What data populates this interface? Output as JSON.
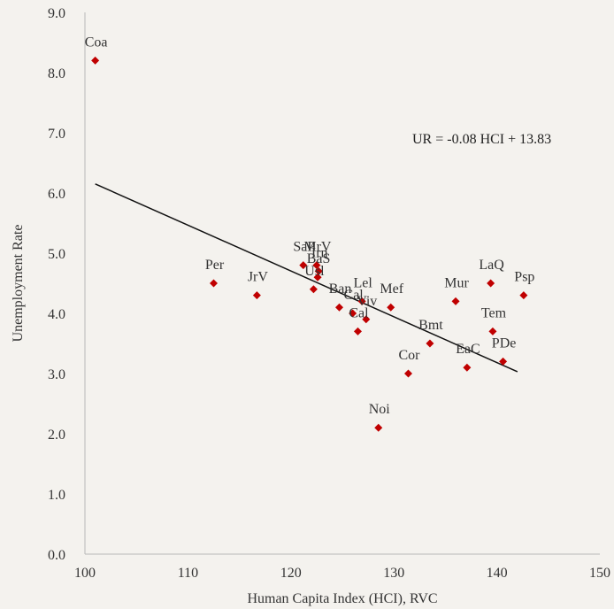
{
  "chart_data": {
    "type": "scatter",
    "title": "",
    "xlabel": "Human Capita Index (HCI), RVC",
    "ylabel": "Unemployment Rate",
    "xlim": [
      100,
      150
    ],
    "ylim": [
      0,
      9
    ],
    "x_ticks": [
      "100",
      "110",
      "120",
      "130",
      "140",
      "150"
    ],
    "y_ticks": [
      "0.0",
      "1.0",
      "2.0",
      "3.0",
      "4.0",
      "5.0",
      "6.0",
      "7.0",
      "8.0",
      "9.0"
    ],
    "grid": false,
    "legend": "none",
    "marker_color": "#c00000",
    "series": [
      {
        "points": [
          {
            "label": "Coa",
            "x": 101.0,
            "y": 8.2
          },
          {
            "label": "Per",
            "x": 112.5,
            "y": 4.5
          },
          {
            "label": "JrV",
            "x": 116.7,
            "y": 4.3
          },
          {
            "label": "SaP",
            "x": 121.2,
            "y": 4.8
          },
          {
            "label": "MrV",
            "x": 122.5,
            "y": 4.8
          },
          {
            "label": "Irn",
            "x": 122.7,
            "y": 4.7
          },
          {
            "label": "BaS",
            "x": 122.6,
            "y": 4.6
          },
          {
            "label": "Usl",
            "x": 122.2,
            "y": 4.4
          },
          {
            "label": "Ban",
            "x": 124.7,
            "y": 4.1
          },
          {
            "label": "Lel",
            "x": 126.9,
            "y": 4.2
          },
          {
            "label": "Viv",
            "x": 127.3,
            "y": 3.9
          },
          {
            "label": "Cal",
            "x": 126.0,
            "y": 4.0
          },
          {
            "label": "Mef",
            "x": 129.7,
            "y": 4.1
          },
          {
            "label": "Cal",
            "x": 126.5,
            "y": 3.7
          },
          {
            "label": "Bmt",
            "x": 133.5,
            "y": 3.5
          },
          {
            "label": "Cor",
            "x": 131.4,
            "y": 3.0
          },
          {
            "label": "Noi",
            "x": 128.5,
            "y": 2.1
          },
          {
            "label": "Mur",
            "x": 136.0,
            "y": 4.2
          },
          {
            "label": "LaQ",
            "x": 139.4,
            "y": 4.5
          },
          {
            "label": "Psp",
            "x": 142.6,
            "y": 4.3
          },
          {
            "label": "Tem",
            "x": 139.6,
            "y": 3.7
          },
          {
            "label": "EaC",
            "x": 137.1,
            "y": 3.1
          },
          {
            "label": "PDe",
            "x": 140.6,
            "y": 3.2
          }
        ]
      }
    ],
    "trendline": {
      "x": [
        101.0,
        142.0
      ],
      "y": [
        6.15,
        3.03
      ]
    },
    "equation": "UR = -0.08 HCI + 13.83"
  }
}
